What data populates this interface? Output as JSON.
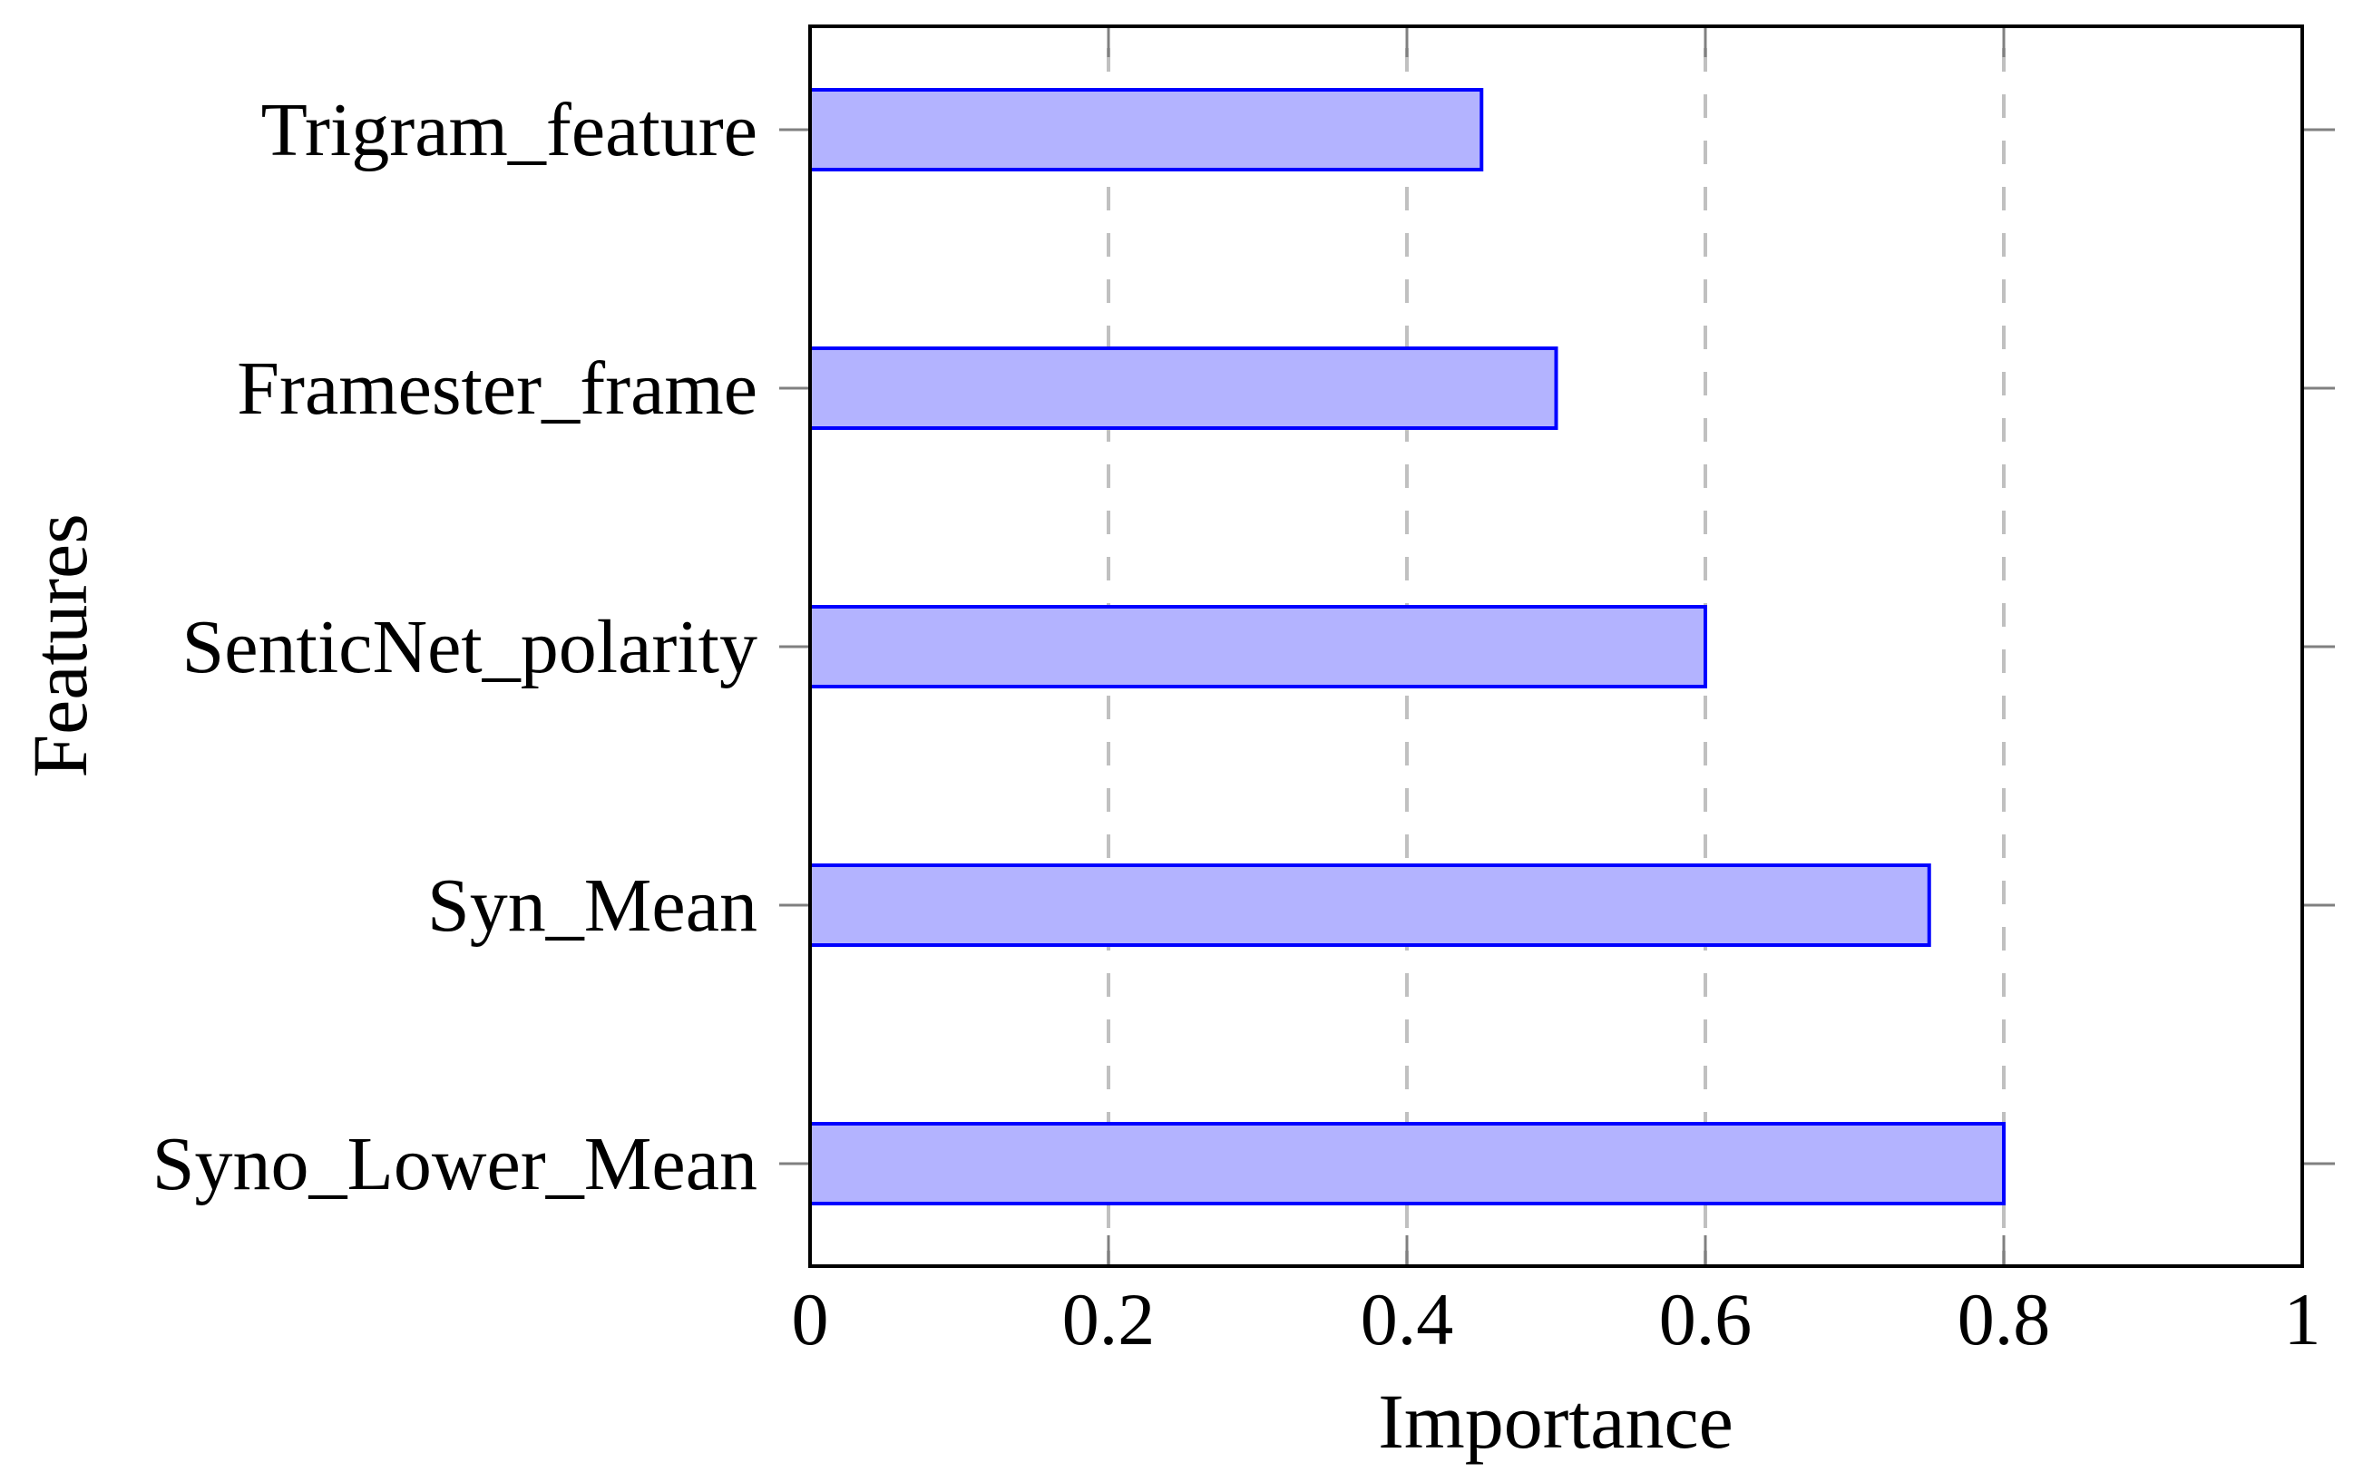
{
  "chart_data": {
    "type": "bar",
    "orientation": "horizontal",
    "title": "",
    "xlabel": "Importance",
    "ylabel": "Features",
    "categories": [
      "Trigram_feature",
      "Framester_frame",
      "SenticNet_polarity",
      "Syn_Mean",
      "Syno_Lower_Mean"
    ],
    "values": [
      0.45,
      0.5,
      0.6,
      0.75,
      0.8
    ],
    "xlim": [
      0,
      1
    ],
    "xticks": [
      0,
      0.2,
      0.4,
      0.6,
      0.8,
      1
    ],
    "xtick_labels": [
      "0",
      "0.2",
      "0.4",
      "0.6",
      "0.8",
      "1"
    ],
    "grid": {
      "x": true,
      "y": false,
      "style": "dashed",
      "color": "#c0c0c0"
    },
    "legend": null,
    "colors": {
      "bar_fill": "#b3b3ff",
      "bar_stroke": "#0000ff",
      "axis": "#000000",
      "tick": "#808080"
    }
  }
}
